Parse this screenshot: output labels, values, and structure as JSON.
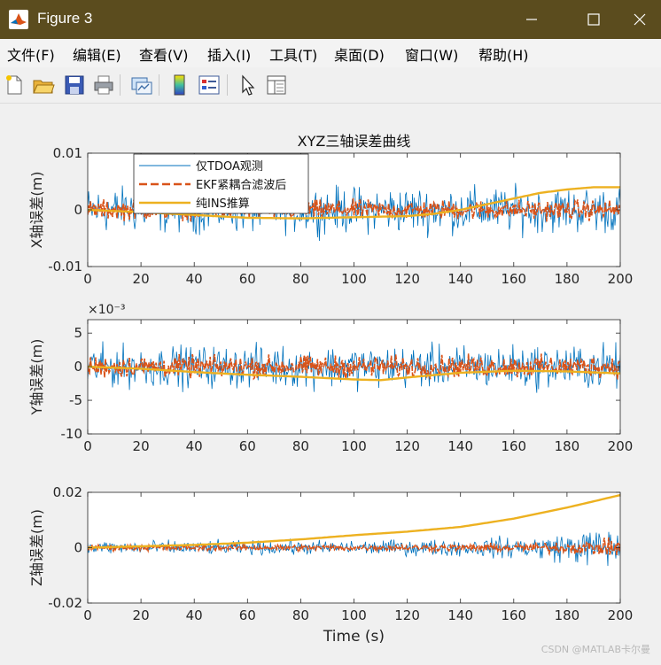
{
  "window": {
    "title": "Figure 3",
    "app_icon": "matlab-icon"
  },
  "menu": [
    {
      "label": "文件(F)"
    },
    {
      "label": "编辑(E)"
    },
    {
      "label": "查看(V)"
    },
    {
      "label": "插入(I)"
    },
    {
      "label": "工具(T)"
    },
    {
      "label": "桌面(D)"
    },
    {
      "label": "窗口(W)"
    },
    {
      "label": "帮助(H)"
    }
  ],
  "toolbar": [
    {
      "icon": "new-figure-icon"
    },
    {
      "icon": "open-file-icon"
    },
    {
      "icon": "save-icon"
    },
    {
      "icon": "print-icon"
    },
    {
      "icon": "link-plot-icon"
    },
    {
      "icon": "insert-colorbar-icon"
    },
    {
      "icon": "insert-legend-icon"
    },
    {
      "icon": "pointer-icon"
    },
    {
      "icon": "property-inspector-icon"
    }
  ],
  "watermark": "CSDN @MATLAB卡尔曼",
  "colors": {
    "tdoa": "#0072bd",
    "ekf": "#d95319",
    "ins": "#edb120"
  },
  "chart_data": [
    {
      "type": "line",
      "title": "XYZ三轴误差曲线",
      "xlabel": "",
      "ylabel": "X轴误差(m)",
      "xlim": [
        0,
        200
      ],
      "ylim": [
        -0.01,
        0.01
      ],
      "xticks": [
        "0",
        "20",
        "40",
        "60",
        "80",
        "100",
        "120",
        "140",
        "160",
        "180",
        "200"
      ],
      "yticks": [
        "-0.01",
        "0",
        "0.01"
      ],
      "exponent": "",
      "legend": {
        "placement": "top-left",
        "entries": [
          "仅TDOA观测",
          "EKF紧耦合滤波后",
          "纯INS推算"
        ]
      },
      "series": [
        {
          "name": "仅TDOA观测",
          "type": "noise",
          "amplitude": 0.0035,
          "amplitude_end": 0.0035
        },
        {
          "name": "EKF紧耦合滤波后",
          "type": "noise",
          "amplitude": 0.0015,
          "amplitude_end": 0.0015
        },
        {
          "name": "纯INS推算",
          "type": "trend",
          "x": [
            0,
            20,
            40,
            60,
            80,
            100,
            120,
            130,
            140,
            150,
            160,
            170,
            180,
            190,
            200
          ],
          "y": [
            0,
            -0.0004,
            -0.0009,
            -0.0014,
            -0.0015,
            -0.0013,
            -0.0011,
            -0.0007,
            0,
            0.001,
            0.002,
            0.003,
            0.0036,
            0.004,
            0.004
          ]
        }
      ]
    },
    {
      "type": "line",
      "title": "",
      "xlabel": "",
      "ylabel": "Y轴误差(m)",
      "xlim": [
        0,
        200
      ],
      "ylim": [
        -10,
        7
      ],
      "xticks": [
        "0",
        "20",
        "40",
        "60",
        "80",
        "100",
        "120",
        "140",
        "160",
        "180",
        "200"
      ],
      "yticks": [
        "-10",
        "-5",
        "0",
        "5"
      ],
      "exponent": "×10⁻³",
      "series": [
        {
          "name": "",
          "type": "noise",
          "amplitude": 2.7,
          "amplitude_end": 3.0
        },
        {
          "name": "",
          "type": "noise",
          "amplitude": 1.4,
          "amplitude_end": 1.4
        },
        {
          "name": "",
          "type": "trend",
          "x": [
            0,
            20,
            40,
            60,
            80,
            100,
            110,
            120,
            140,
            160,
            180,
            200
          ],
          "y": [
            0,
            -0.3,
            -0.8,
            -1.2,
            -1.5,
            -1.9,
            -2.0,
            -1.6,
            -0.9,
            -0.6,
            -0.7,
            -1.0
          ]
        }
      ]
    },
    {
      "type": "line",
      "title": "",
      "xlabel": "Time (s)",
      "ylabel": "Z轴误差(m)",
      "xlim": [
        0,
        200
      ],
      "ylim": [
        -0.02,
        0.02
      ],
      "xticks": [
        "0",
        "20",
        "40",
        "60",
        "80",
        "100",
        "120",
        "140",
        "160",
        "180",
        "200"
      ],
      "yticks": [
        "-0.02",
        "0",
        "0.02"
      ],
      "exponent": "",
      "series": [
        {
          "name": "",
          "type": "noise",
          "amplitude": 0.0022,
          "amplitude_end": 0.007
        },
        {
          "name": "",
          "type": "noise",
          "amplitude": 0.0009,
          "amplitude_end": 0.0028
        },
        {
          "name": "",
          "type": "trend",
          "x": [
            0,
            20,
            40,
            60,
            80,
            100,
            120,
            140,
            160,
            180,
            200
          ],
          "y": [
            0,
            0.0005,
            0.001,
            0.0018,
            0.003,
            0.0045,
            0.0058,
            0.0075,
            0.0105,
            0.0145,
            0.019
          ]
        }
      ]
    }
  ]
}
